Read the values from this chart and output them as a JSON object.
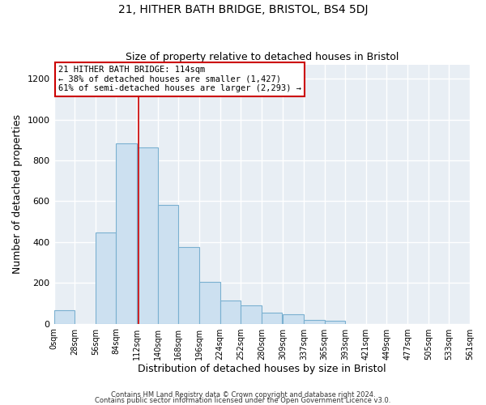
{
  "title": "21, HITHER BATH BRIDGE, BRISTOL, BS4 5DJ",
  "subtitle": "Size of property relative to detached houses in Bristol",
  "xlabel": "Distribution of detached houses by size in Bristol",
  "ylabel": "Number of detached properties",
  "bin_labels": [
    "0sqm",
    "28sqm",
    "56sqm",
    "84sqm",
    "112sqm",
    "140sqm",
    "168sqm",
    "196sqm",
    "224sqm",
    "252sqm",
    "280sqm",
    "309sqm",
    "337sqm",
    "365sqm",
    "393sqm",
    "421sqm",
    "449sqm",
    "477sqm",
    "505sqm",
    "533sqm",
    "561sqm"
  ],
  "bin_edges": [
    0,
    28,
    56,
    84,
    112,
    140,
    168,
    196,
    224,
    252,
    280,
    309,
    337,
    365,
    393,
    421,
    449,
    477,
    505,
    533,
    561
  ],
  "bar_heights": [
    65,
    0,
    445,
    885,
    865,
    580,
    375,
    205,
    115,
    90,
    55,
    45,
    20,
    15,
    0,
    0,
    0,
    0,
    0,
    0
  ],
  "bar_color": "#cce0f0",
  "bar_edge_color": "#7ab0d0",
  "property_line_x": 114,
  "property_line_color": "#cc0000",
  "annotation_line1": "21 HITHER BATH BRIDGE: 114sqm",
  "annotation_line2": "← 38% of detached houses are smaller (1,427)",
  "annotation_line3": "61% of semi-detached houses are larger (2,293) →",
  "annotation_box_edge_color": "#cc0000",
  "annotation_bg_color": "#ffffff",
  "ylim": [
    0,
    1270
  ],
  "yticks": [
    0,
    200,
    400,
    600,
    800,
    1000,
    1200
  ],
  "footer1": "Contains HM Land Registry data © Crown copyright and database right 2024.",
  "footer2": "Contains public sector information licensed under the Open Government Licence v3.0.",
  "fig_background_color": "#ffffff",
  "plot_background_color": "#e8eef4",
  "grid_color": "#ffffff",
  "figsize": [
    6.0,
    5.0
  ],
  "dpi": 100
}
